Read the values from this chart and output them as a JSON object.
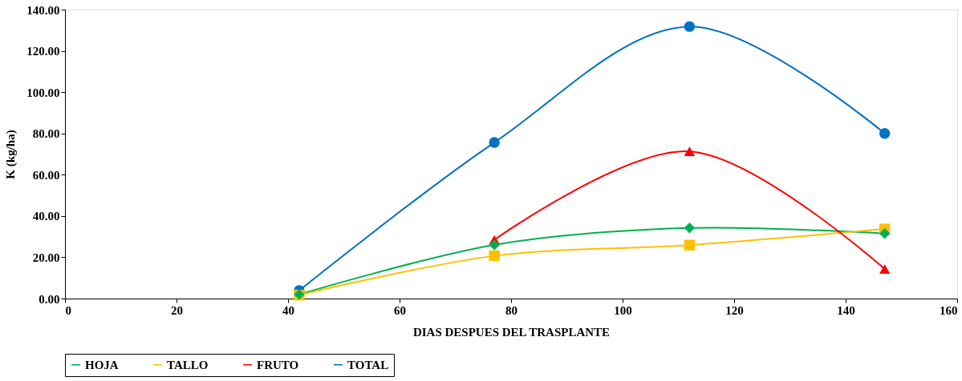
{
  "chart_data": {
    "type": "line",
    "xlabel": "DIAS DESPUES DEL TRASPLANTE",
    "ylabel": "K  (kg/ha)",
    "x": [
      42,
      77,
      112,
      147
    ],
    "series": [
      {
        "name": "HOJA",
        "color": "#00b050",
        "marker": "diamond",
        "values": [
          2.0,
          26.0,
          34.2,
          31.5
        ]
      },
      {
        "name": "TALLO",
        "color": "#ffc000",
        "marker": "square",
        "values": [
          1.7,
          20.7,
          25.9,
          33.7
        ]
      },
      {
        "name": "FRUTO",
        "color": "#ff0000",
        "marker": "triangle",
        "values": [
          null,
          28.5,
          71.3,
          14.3
        ]
      },
      {
        "name": "TOTAL",
        "color": "#0070c0",
        "marker": "circle",
        "values": [
          3.9,
          75.6,
          131.8,
          80.0
        ]
      }
    ],
    "xlim": [
      0,
      160
    ],
    "xticks": [
      0,
      20,
      40,
      60,
      80,
      100,
      120,
      140,
      160
    ],
    "ylim": [
      0,
      140
    ],
    "yticks": [
      {
        "value": 0,
        "label": "0.00"
      },
      {
        "value": 20,
        "label": "20.00"
      },
      {
        "value": 40,
        "label": "40.00"
      },
      {
        "value": 60,
        "label": "60.00"
      },
      {
        "value": 80,
        "label": "80.00"
      },
      {
        "value": 100,
        "label": "100.00"
      },
      {
        "value": 120,
        "label": "120.00"
      },
      {
        "value": 140,
        "label": "140.00"
      }
    ],
    "grid": false,
    "legend": "bottom",
    "line_style": "solid"
  }
}
